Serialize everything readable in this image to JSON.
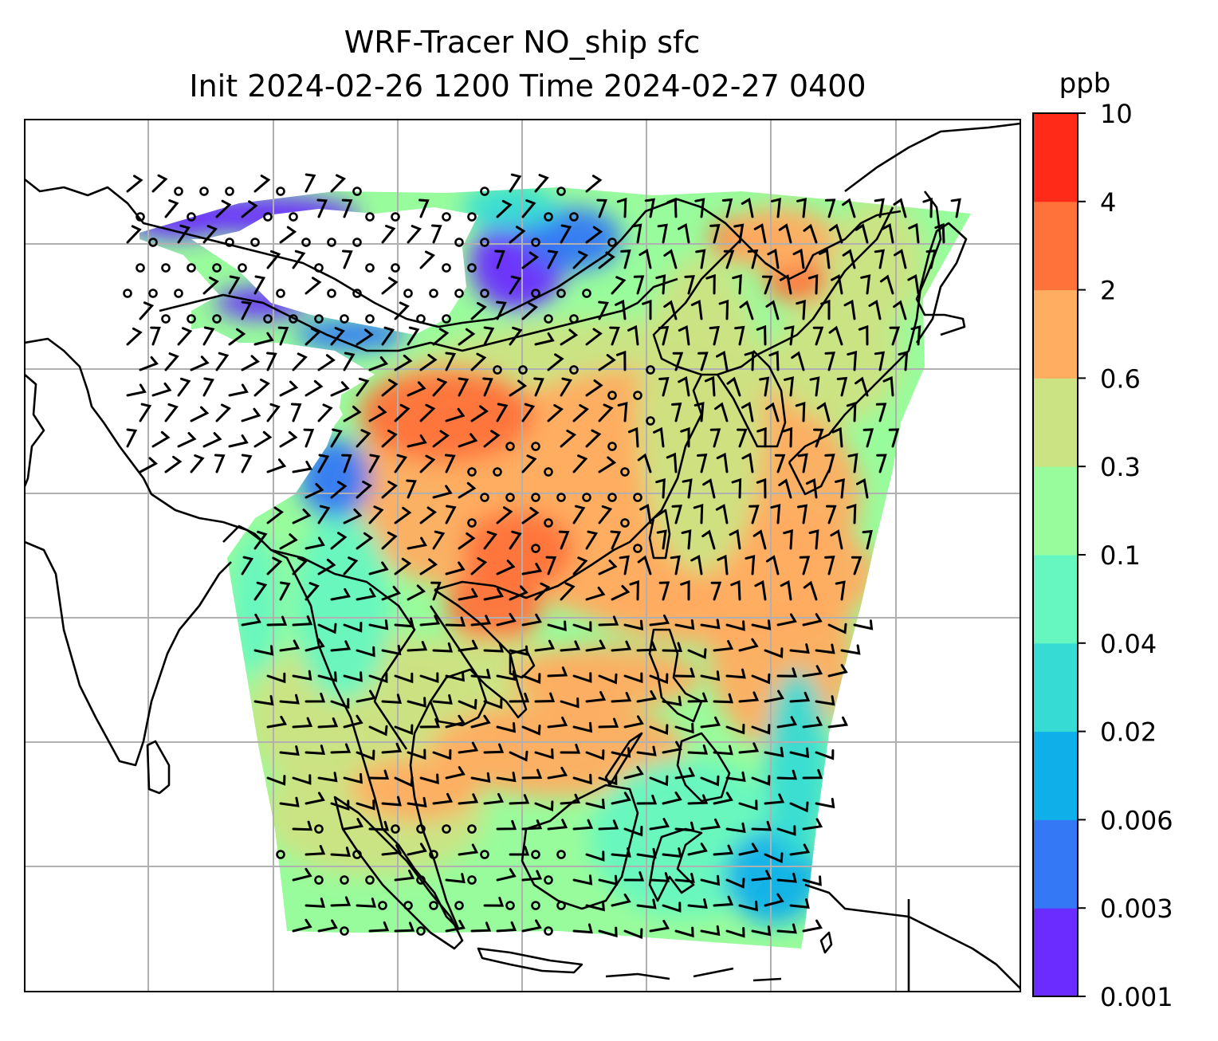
{
  "title": {
    "line1": "WRF-Tracer NO_ship sfc",
    "line2": "Init 2024-02-26 1200 Time 2024-02-27 0400"
  },
  "colorbar": {
    "unit": "ppb",
    "levels": [
      "0.001",
      "0.003",
      "0.006",
      "0.02",
      "0.04",
      "0.1",
      "0.3",
      "0.6",
      "2",
      "4",
      "10"
    ],
    "colors": [
      "#6a2cff",
      "#3478f6",
      "#0fb0ea",
      "#36dcd4",
      "#66f7c0",
      "#99fc9c",
      "#cce383",
      "#ffad61",
      "#ff733b",
      "#ff2b18"
    ]
  },
  "map": {
    "field": "NO_ship surface tracer concentration",
    "overlays": [
      "coastlines",
      "national-borders",
      "gridlines",
      "wind-barbs",
      "calm-wind-circles"
    ],
    "grid": "on",
    "colors": {
      "coastline": "#000000",
      "grid": "#b0b0b0",
      "no-data": "#ffffff"
    }
  }
}
